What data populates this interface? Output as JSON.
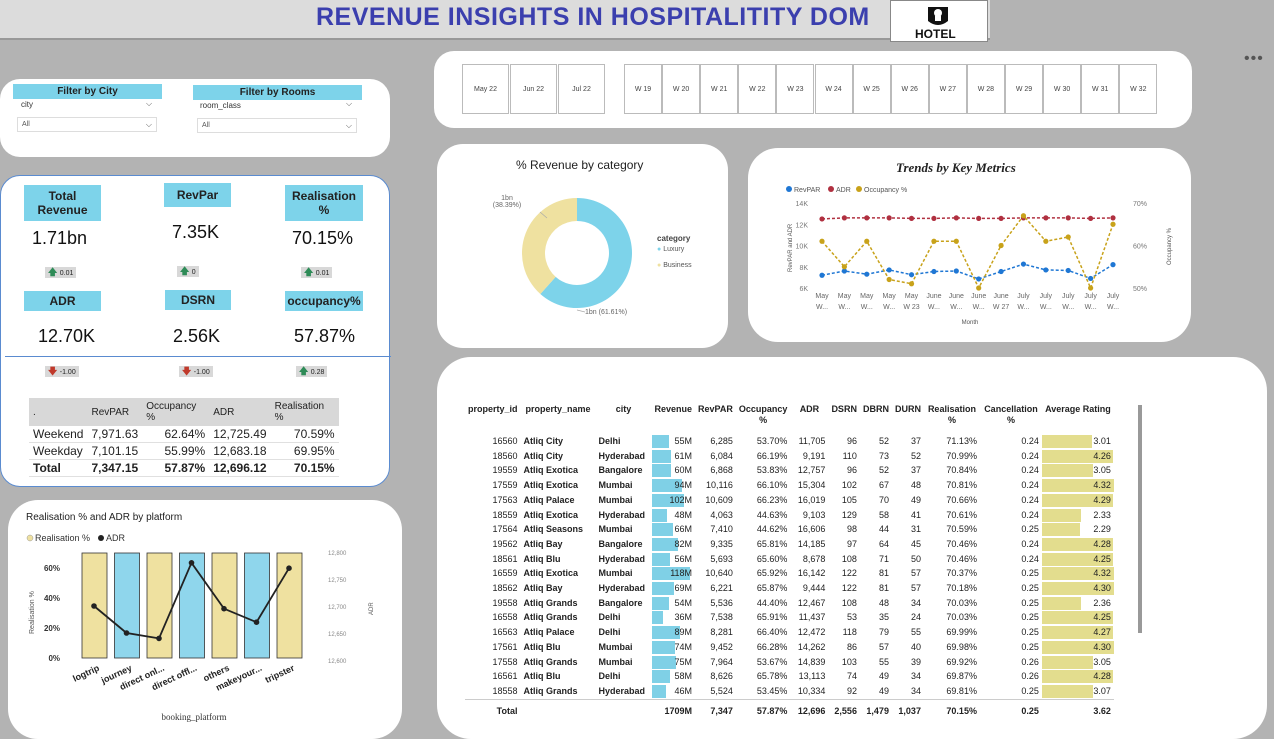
{
  "title": "REVENUE INSIGHTS IN HOSPITALITITY DOM",
  "logo_label": "HOTEL",
  "more_icon": "•••",
  "filters": {
    "city": {
      "header": "Filter by City",
      "label": "city",
      "value": "All"
    },
    "rooms": {
      "header": "Filter by Rooms",
      "label": "room_class",
      "value": "All"
    }
  },
  "slicer": {
    "months": [
      "May 22",
      "Jun 22",
      "Jul 22"
    ],
    "weeks": [
      "W 19",
      "W 20",
      "W 21",
      "W 22",
      "W 23",
      "W 24",
      "W 25",
      "W 26",
      "W 27",
      "W 28",
      "W 29",
      "W 30",
      "W 31",
      "W 32"
    ]
  },
  "kpis": [
    {
      "label": "Total Revenue",
      "value": "1.71bn",
      "delta": "0.01",
      "dir": "up"
    },
    {
      "label": "RevPar",
      "value": "7.35K",
      "delta": "0",
      "dir": "up"
    },
    {
      "label": "Realisation %",
      "value": "70.15%",
      "delta": "0.01",
      "dir": "up"
    },
    {
      "label": "ADR",
      "value": "12.70K",
      "delta": "-1.00",
      "dir": "down"
    },
    {
      "label": "DSRN",
      "value": "2.56K",
      "delta": "-1.00",
      "dir": "down"
    },
    {
      "label": "occupancy%",
      "value": "57.87%",
      "delta": "0.28",
      "dir": "up"
    }
  ],
  "weektype_table": {
    "headers": [
      ".",
      "RevPAR",
      "Occupancy %",
      "ADR",
      "Realisation %"
    ],
    "rows": [
      [
        "Weekend",
        "7,971.63",
        "62.64%",
        "12,725.49",
        "70.59%"
      ],
      [
        "Weekday",
        "7,101.15",
        "55.99%",
        "12,683.18",
        "69.95%"
      ],
      [
        "Total",
        "7,347.15",
        "57.87%",
        "12,696.12",
        "70.15%"
      ]
    ]
  },
  "donut": {
    "title": "% Revenue by category",
    "legend_title": "category",
    "slices": [
      {
        "name": "Luxury",
        "value": 61.61,
        "label_top": "1bn (61.61%)",
        "color": "#7dd3ea"
      },
      {
        "name": "Business",
        "value": 38.39,
        "label_top": "1bn",
        "label_pct": "(38.39%)",
        "color": "#efe1a0"
      }
    ]
  },
  "chart_data": [
    {
      "type": "line",
      "title": "Trends by Key Metrics",
      "xlabel": "Month",
      "ylabel": "RevPAR and ADR",
      "y2label": "Occupancy %",
      "y_ticks": [
        "14K",
        "12K",
        "10K",
        "8K",
        "6K"
      ],
      "y2_ticks": [
        "70%",
        "60%",
        "50%"
      ],
      "x_top": [
        "May",
        "May",
        "May",
        "May",
        "May",
        "June",
        "June",
        "June",
        "June",
        "July",
        "July",
        "July",
        "July",
        "July"
      ],
      "x_bottom": [
        "W...",
        "W...",
        "W...",
        "W...",
        "W 23",
        "W...",
        "W...",
        "W...",
        "W 27",
        "W...",
        "W...",
        "W...",
        "W...",
        "W..."
      ],
      "ylim": [
        6000,
        14000
      ],
      "y2lim": [
        50,
        70
      ],
      "series": [
        {
          "name": "RevPAR",
          "color": "#1f77d4",
          "axis": "y",
          "values": [
            7200,
            7600,
            7300,
            7700,
            7250,
            7550,
            7600,
            6850,
            7550,
            8250,
            7700,
            7650,
            6900,
            8200
          ]
        },
        {
          "name": "ADR",
          "color": "#b03040",
          "axis": "y",
          "values": [
            12500,
            12600,
            12600,
            12600,
            12550,
            12550,
            12600,
            12550,
            12550,
            12600,
            12600,
            12600,
            12550,
            12600
          ]
        },
        {
          "name": "Occupancy %",
          "color": "#c8a21a",
          "axis": "y2",
          "values": [
            61,
            55,
            61,
            52,
            51,
            61,
            61,
            50,
            60,
            67,
            61,
            62,
            50,
            65
          ]
        }
      ]
    },
    {
      "type": "bar",
      "title": "Realisation % and ADR by platform",
      "xlabel": "booking_platform",
      "ylabel": "Realisation %",
      "y2label": "ADR",
      "y_ticks": [
        "60%",
        "40%",
        "20%",
        "0%"
      ],
      "y2_ticks": [
        "12,800",
        "12,750",
        "12,700",
        "12,650",
        "12,600"
      ],
      "ylim": [
        0,
        80
      ],
      "y2lim": [
        12600,
        12800
      ],
      "categories": [
        "logtrip",
        "journey",
        "direct onl...",
        "direct offl...",
        "others",
        "makeyour...",
        "tripster"
      ],
      "series": [
        {
          "name": "Realisation %",
          "color": "#efe1a0",
          "values": [
            70,
            70,
            70,
            70,
            70,
            70,
            70
          ]
        },
        {
          "name": "ADR",
          "color": "#222222",
          "values": [
            12700,
            12650,
            12640,
            12780,
            12695,
            12670,
            12770
          ]
        }
      ],
      "bar_colors": [
        "#efe1a0",
        "#8fd6ec",
        "#efe1a0",
        "#8fd6ec",
        "#efe1a0",
        "#8fd6ec",
        "#efe1a0"
      ]
    }
  ],
  "prop_table": {
    "headers": [
      "property_id",
      "property_name",
      "city",
      "Revenue",
      "RevPAR",
      "Occupancy %",
      "ADR",
      "DSRN",
      "DBRN",
      "DURN",
      "Realisation %",
      "Cancellation %",
      "Average Rating"
    ],
    "rows": [
      [
        "16560",
        "Atliq City",
        "Delhi",
        "55M",
        "6,285",
        "53.70%",
        "11,705",
        "96",
        "52",
        "37",
        "71.13%",
        "0.24",
        "3.01"
      ],
      [
        "18560",
        "Atliq City",
        "Hyderabad",
        "61M",
        "6,084",
        "66.19%",
        "9,191",
        "110",
        "73",
        "52",
        "70.99%",
        "0.24",
        "4.26"
      ],
      [
        "19559",
        "Atliq Exotica",
        "Bangalore",
        "60M",
        "6,868",
        "53.83%",
        "12,757",
        "96",
        "52",
        "37",
        "70.84%",
        "0.24",
        "3.05"
      ],
      [
        "17559",
        "Atliq Exotica",
        "Mumbai",
        "94M",
        "10,116",
        "66.10%",
        "15,304",
        "102",
        "67",
        "48",
        "70.81%",
        "0.24",
        "4.32"
      ],
      [
        "17563",
        "Atliq Palace",
        "Mumbai",
        "102M",
        "10,609",
        "66.23%",
        "16,019",
        "105",
        "70",
        "49",
        "70.66%",
        "0.24",
        "4.29"
      ],
      [
        "18559",
        "Atliq Exotica",
        "Hyderabad",
        "48M",
        "4,063",
        "44.63%",
        "9,103",
        "129",
        "58",
        "41",
        "70.61%",
        "0.24",
        "2.33"
      ],
      [
        "17564",
        "Atliq Seasons",
        "Mumbai",
        "66M",
        "7,410",
        "44.62%",
        "16,606",
        "98",
        "44",
        "31",
        "70.59%",
        "0.25",
        "2.29"
      ],
      [
        "19562",
        "Atliq Bay",
        "Bangalore",
        "82M",
        "9,335",
        "65.81%",
        "14,185",
        "97",
        "64",
        "45",
        "70.46%",
        "0.24",
        "4.28"
      ],
      [
        "18561",
        "Atliq Blu",
        "Hyderabad",
        "56M",
        "5,693",
        "65.60%",
        "8,678",
        "108",
        "71",
        "50",
        "70.46%",
        "0.24",
        "4.25"
      ],
      [
        "16559",
        "Atliq Exotica",
        "Mumbai",
        "118M",
        "10,640",
        "65.92%",
        "16,142",
        "122",
        "81",
        "57",
        "70.37%",
        "0.25",
        "4.32"
      ],
      [
        "18562",
        "Atliq Bay",
        "Hyderabad",
        "69M",
        "6,221",
        "65.87%",
        "9,444",
        "122",
        "81",
        "57",
        "70.18%",
        "0.25",
        "4.30"
      ],
      [
        "19558",
        "Atliq Grands",
        "Bangalore",
        "54M",
        "5,536",
        "44.40%",
        "12,467",
        "108",
        "48",
        "34",
        "70.03%",
        "0.25",
        "2.36"
      ],
      [
        "16558",
        "Atliq Grands",
        "Delhi",
        "36M",
        "7,538",
        "65.91%",
        "11,437",
        "53",
        "35",
        "24",
        "70.03%",
        "0.25",
        "4.25"
      ],
      [
        "16563",
        "Atliq Palace",
        "Delhi",
        "89M",
        "8,281",
        "66.40%",
        "12,472",
        "118",
        "79",
        "55",
        "69.99%",
        "0.25",
        "4.27"
      ],
      [
        "17561",
        "Atliq Blu",
        "Mumbai",
        "74M",
        "9,452",
        "66.28%",
        "14,262",
        "86",
        "57",
        "40",
        "69.98%",
        "0.25",
        "4.30"
      ],
      [
        "17558",
        "Atliq Grands",
        "Mumbai",
        "75M",
        "7,964",
        "53.67%",
        "14,839",
        "103",
        "55",
        "39",
        "69.92%",
        "0.26",
        "3.05"
      ],
      [
        "16561",
        "Atliq Blu",
        "Delhi",
        "58M",
        "8,626",
        "65.78%",
        "13,113",
        "74",
        "49",
        "34",
        "69.87%",
        "0.26",
        "4.28"
      ],
      [
        "18558",
        "Atliq Grands",
        "Hyderabad",
        "46M",
        "5,524",
        "53.45%",
        "10,334",
        "92",
        "49",
        "34",
        "69.81%",
        "0.25",
        "3.07"
      ]
    ],
    "total": [
      "Total",
      "",
      "",
      "1709M",
      "7,347",
      "57.87%",
      "12,696",
      "2,556",
      "1,479",
      "1,037",
      "70.15%",
      "0.25",
      "3.62"
    ]
  }
}
